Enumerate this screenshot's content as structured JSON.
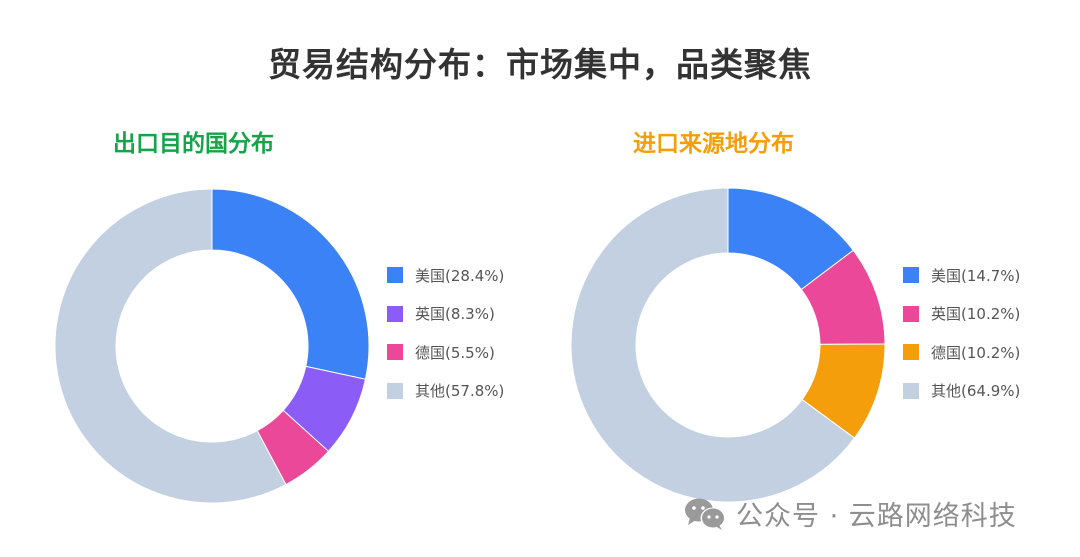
{
  "title": "贸易结构分布：市场集中，品类聚焦",
  "colors": {
    "title": "#333333",
    "export_title": "#16a34a",
    "import_title": "#f59e0b",
    "legend_text": "#555555",
    "watermark": "#8e8e8e"
  },
  "export_chart": {
    "title": "出口目的国分布",
    "legend": [
      {
        "label": "美国(28.4%)",
        "color": "#3b82f6"
      },
      {
        "label": "英国(8.3%)",
        "color": "#8b5cf6"
      },
      {
        "label": "德国(5.5%)",
        "color": "#ec4899"
      },
      {
        "label": "其他(57.8%)",
        "color": "#c2d0e1"
      }
    ]
  },
  "import_chart": {
    "title": "进口来源地分布",
    "legend": [
      {
        "label": "美国(14.7%)",
        "color": "#3b82f6"
      },
      {
        "label": "英国(10.2%)",
        "color": "#ec4899"
      },
      {
        "label": "德国(10.2%)",
        "color": "#f59e0b"
      },
      {
        "label": "其他(64.9%)",
        "color": "#c2d0e1"
      }
    ]
  },
  "watermark": {
    "icon": "wechat-icon",
    "text": "公众号 · 云路网络科技"
  },
  "chart_data": [
    {
      "type": "pie",
      "title": "出口目的国分布",
      "categories": [
        "美国",
        "英国",
        "德国",
        "其他"
      ],
      "values": [
        28.4,
        8.3,
        5.5,
        57.8
      ],
      "unit": "%",
      "colors": [
        "#3b82f6",
        "#8b5cf6",
        "#ec4899",
        "#c2d0e1"
      ],
      "donut": true,
      "legend_position": "right"
    },
    {
      "type": "pie",
      "title": "进口来源地分布",
      "categories": [
        "美国",
        "英国",
        "德国",
        "其他"
      ],
      "values": [
        14.7,
        10.2,
        10.2,
        64.9
      ],
      "unit": "%",
      "colors": [
        "#3b82f6",
        "#ec4899",
        "#f59e0b",
        "#c2d0e1"
      ],
      "donut": true,
      "legend_position": "right"
    }
  ]
}
